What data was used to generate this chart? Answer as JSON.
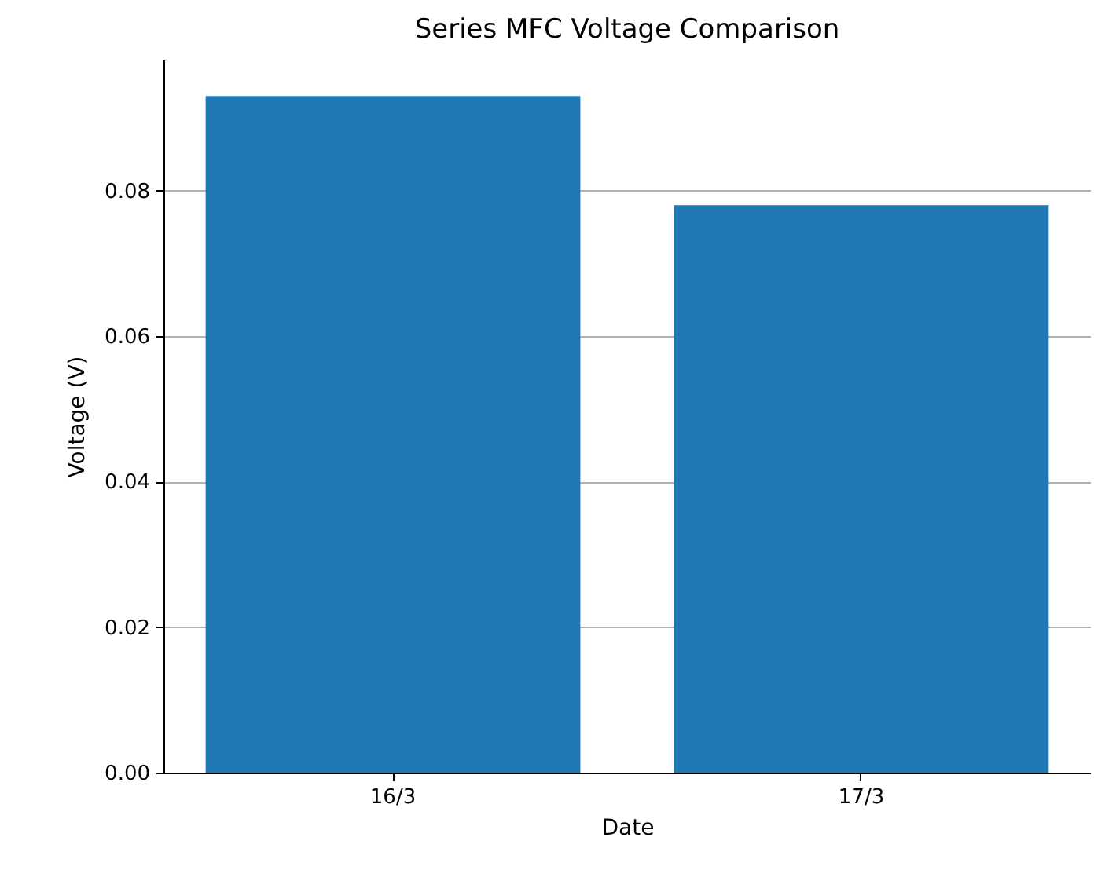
{
  "chart_data": {
    "type": "bar",
    "title": "Series MFC Voltage Comparison",
    "xlabel": "Date",
    "ylabel": "Voltage (V)",
    "categories": [
      "16/3",
      "17/3"
    ],
    "values": [
      0.093,
      0.078
    ],
    "color": "#1f77b4",
    "ylim": [
      0,
      0.098
    ],
    "yticks": [
      {
        "value": 0,
        "label": "0.00"
      },
      {
        "value": 0.02,
        "label": "0.02"
      },
      {
        "value": 0.04,
        "label": "0.04"
      },
      {
        "value": 0.06,
        "label": "0.06"
      },
      {
        "value": 0.08,
        "label": "0.08"
      }
    ],
    "grid": "y"
  }
}
